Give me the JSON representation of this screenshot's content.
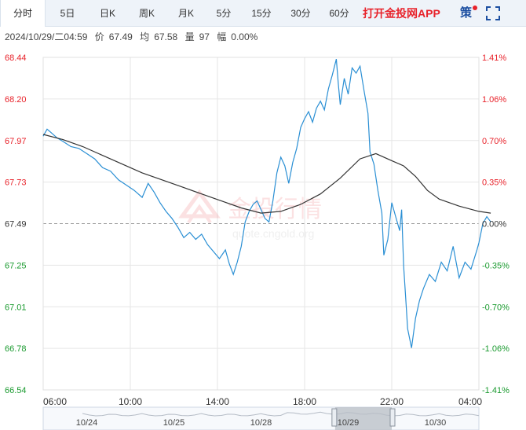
{
  "tabs": [
    {
      "label": "分时",
      "active": true
    },
    {
      "label": "5日"
    },
    {
      "label": "日K"
    },
    {
      "label": "周K"
    },
    {
      "label": "月K"
    },
    {
      "label": "5分"
    },
    {
      "label": "15分"
    },
    {
      "label": "30分"
    },
    {
      "label": "60分"
    }
  ],
  "app_link": "打开金投网APP",
  "strategy_label": "策",
  "info": {
    "datetime": "2024/10/29/二04:59",
    "price_label": "价",
    "price": "67.49",
    "avg_label": "均",
    "avg": "67.58",
    "volume_label": "量",
    "volume": "97",
    "change_label": "幅",
    "change": "0.00%"
  },
  "watermark": {
    "text": "金投行情",
    "url": "quote.cngold.org"
  },
  "colors": {
    "up": "#e8222a",
    "down": "#1a9a2f",
    "price_line": "#2a8fd4",
    "avg_line": "#333333"
  },
  "chart_data": {
    "type": "line",
    "y_left_ticks": [
      "68.44",
      "68.20",
      "67.97",
      "67.73",
      "67.49",
      "67.25",
      "67.01",
      "66.78",
      "66.54"
    ],
    "y_right_ticks": [
      "1.41%",
      "1.06%",
      "0.70%",
      "0.35%",
      "0.00%",
      "-0.35%",
      "-0.70%",
      "-1.06%",
      "-1.41%"
    ],
    "ylim": [
      66.54,
      68.44
    ],
    "base_price": 67.49,
    "x_tick_labels": [
      "06:00",
      "10:00",
      "14:00",
      "18:00",
      "22:00",
      "04:00"
    ],
    "x_range_hours": [
      0,
      22
    ],
    "series": [
      {
        "key": "price",
        "points": [
          [
            0,
            67.99
          ],
          [
            0.2,
            68.03
          ],
          [
            0.4,
            68.01
          ],
          [
            0.7,
            67.98
          ],
          [
            1.0,
            67.96
          ],
          [
            1.4,
            67.93
          ],
          [
            1.8,
            67.92
          ],
          [
            2.2,
            67.89
          ],
          [
            2.6,
            67.86
          ],
          [
            3.0,
            67.81
          ],
          [
            3.4,
            67.79
          ],
          [
            3.8,
            67.74
          ],
          [
            4.2,
            67.71
          ],
          [
            4.6,
            67.68
          ],
          [
            5.0,
            67.64
          ],
          [
            5.3,
            67.72
          ],
          [
            5.6,
            67.67
          ],
          [
            5.9,
            67.61
          ],
          [
            6.2,
            67.56
          ],
          [
            6.5,
            67.52
          ],
          [
            6.8,
            67.47
          ],
          [
            7.1,
            67.41
          ],
          [
            7.4,
            67.44
          ],
          [
            7.7,
            67.4
          ],
          [
            8.0,
            67.43
          ],
          [
            8.3,
            67.37
          ],
          [
            8.6,
            67.33
          ],
          [
            8.9,
            67.29
          ],
          [
            9.2,
            67.34
          ],
          [
            9.4,
            67.26
          ],
          [
            9.6,
            67.2
          ],
          [
            9.8,
            67.27
          ],
          [
            10.0,
            67.36
          ],
          [
            10.2,
            67.5
          ],
          [
            10.4,
            67.56
          ],
          [
            10.6,
            67.6
          ],
          [
            10.8,
            67.62
          ],
          [
            11.0,
            67.57
          ],
          [
            11.2,
            67.52
          ],
          [
            11.4,
            67.5
          ],
          [
            11.6,
            67.62
          ],
          [
            11.8,
            67.78
          ],
          [
            12.0,
            67.87
          ],
          [
            12.2,
            67.82
          ],
          [
            12.4,
            67.72
          ],
          [
            12.6,
            67.84
          ],
          [
            12.8,
            67.92
          ],
          [
            13.0,
            68.04
          ],
          [
            13.2,
            68.09
          ],
          [
            13.4,
            68.13
          ],
          [
            13.6,
            68.07
          ],
          [
            13.8,
            68.15
          ],
          [
            14.0,
            68.19
          ],
          [
            14.2,
            68.14
          ],
          [
            14.4,
            68.26
          ],
          [
            14.6,
            68.34
          ],
          [
            14.8,
            68.43
          ],
          [
            14.9,
            68.29
          ],
          [
            15.0,
            68.17
          ],
          [
            15.2,
            68.32
          ],
          [
            15.4,
            68.23
          ],
          [
            15.6,
            68.38
          ],
          [
            15.8,
            68.35
          ],
          [
            16.0,
            68.39
          ],
          [
            16.2,
            68.25
          ],
          [
            16.4,
            68.12
          ],
          [
            16.5,
            67.9
          ],
          [
            16.7,
            67.83
          ],
          [
            16.9,
            67.68
          ],
          [
            17.1,
            67.55
          ],
          [
            17.2,
            67.31
          ],
          [
            17.4,
            67.4
          ],
          [
            17.6,
            67.61
          ],
          [
            17.8,
            67.53
          ],
          [
            18.0,
            67.45
          ],
          [
            18.1,
            67.57
          ],
          [
            18.2,
            67.25
          ],
          [
            18.3,
            67.07
          ],
          [
            18.4,
            66.89
          ],
          [
            18.6,
            66.78
          ],
          [
            18.8,
            66.95
          ],
          [
            19.0,
            67.05
          ],
          [
            19.2,
            67.12
          ],
          [
            19.5,
            67.2
          ],
          [
            19.8,
            67.16
          ],
          [
            20.1,
            67.27
          ],
          [
            20.4,
            67.22
          ],
          [
            20.7,
            67.36
          ],
          [
            21.0,
            67.18
          ],
          [
            21.3,
            67.27
          ],
          [
            21.6,
            67.23
          ],
          [
            21.9,
            67.34
          ],
          [
            22.0,
            67.38
          ],
          [
            22.2,
            67.49
          ],
          [
            22.4,
            67.53
          ],
          [
            22.6,
            67.5
          ]
        ]
      },
      {
        "key": "average",
        "points": [
          [
            0,
            68.0
          ],
          [
            1,
            67.97
          ],
          [
            2,
            67.93
          ],
          [
            3,
            67.88
          ],
          [
            4,
            67.83
          ],
          [
            5,
            67.78
          ],
          [
            6,
            67.74
          ],
          [
            7,
            67.7
          ],
          [
            8,
            67.66
          ],
          [
            9,
            67.62
          ],
          [
            10,
            67.58
          ],
          [
            11,
            67.55
          ],
          [
            12,
            67.56
          ],
          [
            13,
            67.6
          ],
          [
            14,
            67.66
          ],
          [
            15,
            67.75
          ],
          [
            16,
            67.86
          ],
          [
            16.8,
            67.89
          ],
          [
            17.6,
            67.85
          ],
          [
            18.2,
            67.82
          ],
          [
            18.8,
            67.76
          ],
          [
            19.4,
            67.68
          ],
          [
            20,
            67.63
          ],
          [
            21,
            67.59
          ],
          [
            22,
            67.56
          ],
          [
            22.6,
            67.55
          ]
        ]
      }
    ]
  },
  "navigator": {
    "labels": [
      "10/24",
      "10/25",
      "10/28",
      "10/29",
      "10/30"
    ],
    "left_arrow": "◀",
    "right_arrow": "▶",
    "selected_range": [
      0.67,
      0.8
    ]
  }
}
